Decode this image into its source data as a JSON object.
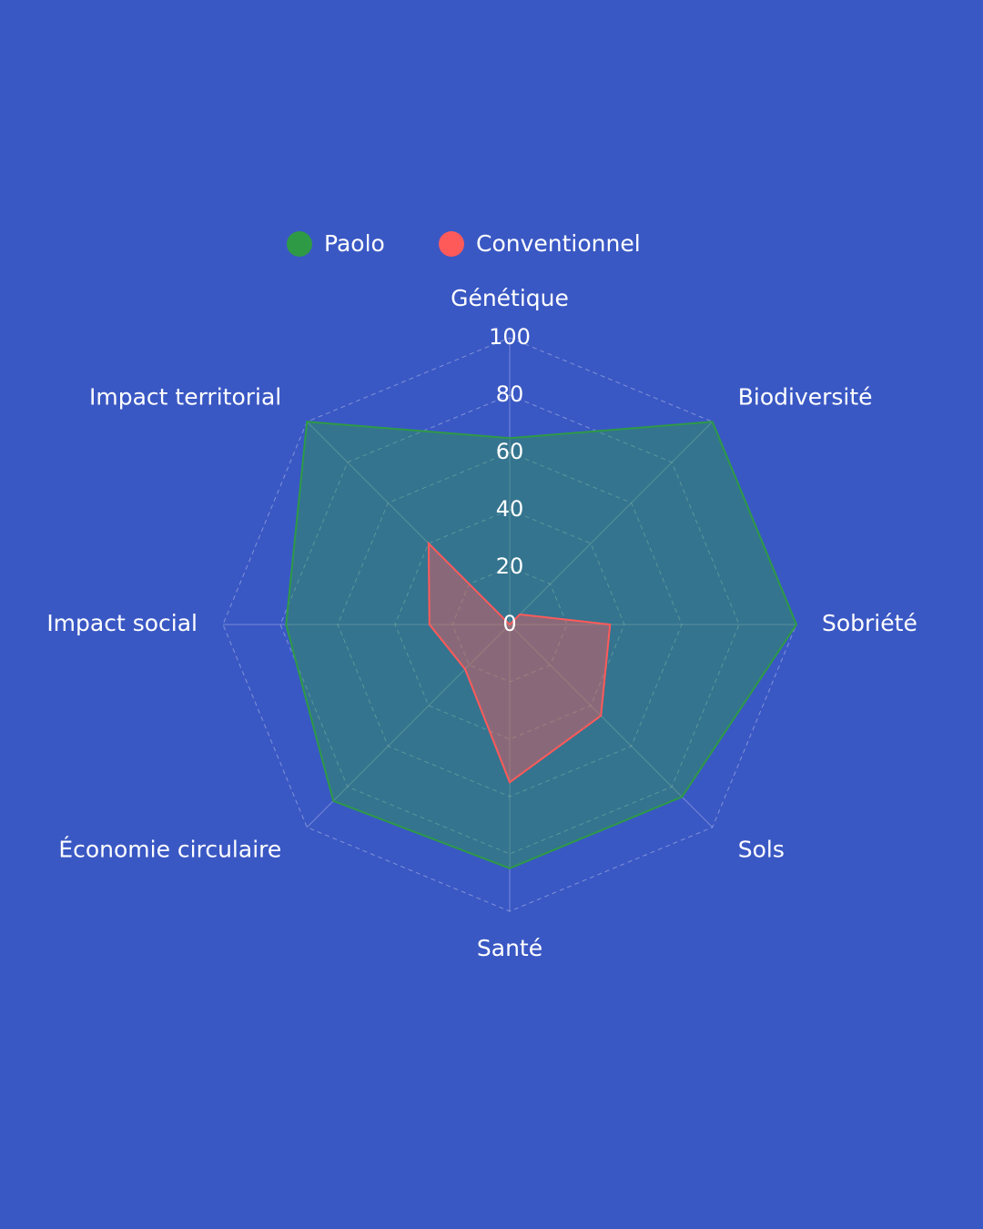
{
  "chart_data": {
    "type": "radar",
    "categories": [
      "Génétique",
      "Biodiversité",
      "Sobriété",
      "Sols",
      "Santé",
      "Économie circulaire",
      "Impact social",
      "Impact territorial"
    ],
    "series": [
      {
        "name": "Paolo",
        "color": "#2e9a46",
        "values": [
          65,
          100,
          100,
          85,
          85,
          87,
          78,
          100
        ]
      },
      {
        "name": "Conventionnel",
        "color": "#ff5a5a",
        "values": [
          0,
          5,
          35,
          45,
          55,
          22,
          28,
          40
        ]
      }
    ],
    "ylim": [
      0,
      100
    ],
    "yticks": [
      0,
      20,
      40,
      60,
      80,
      100
    ],
    "grid": true,
    "legend": "top"
  }
}
